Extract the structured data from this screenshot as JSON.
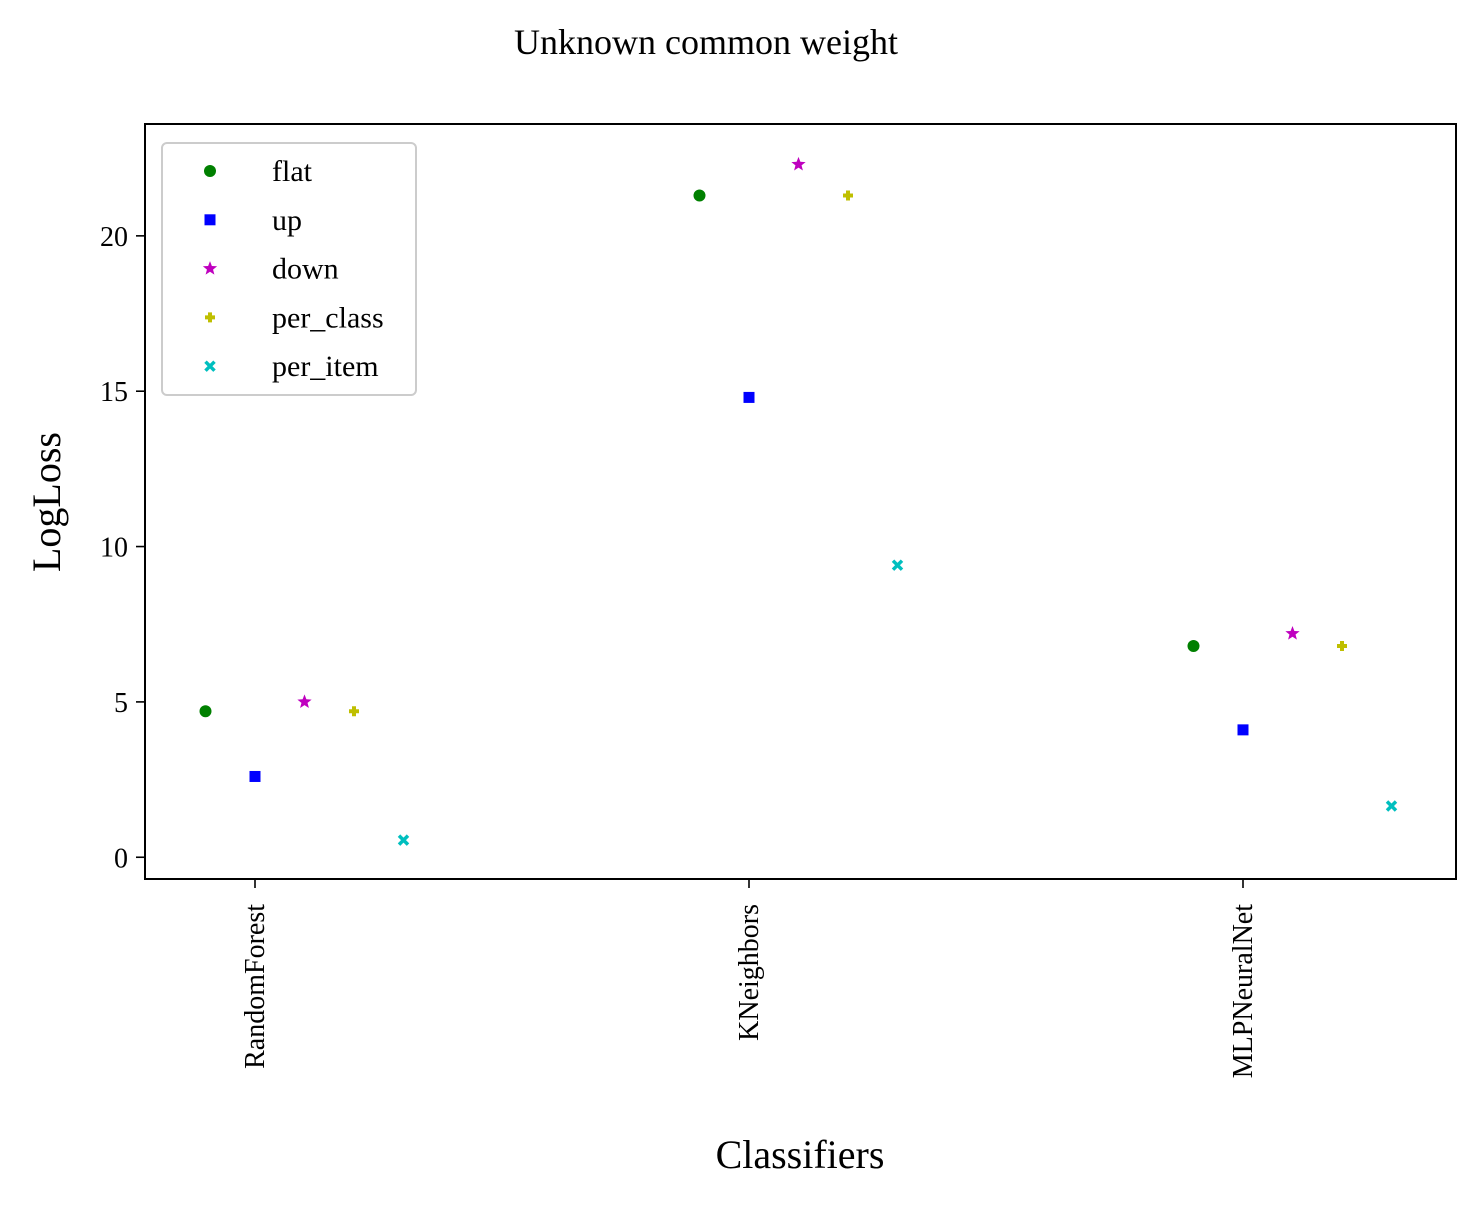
{
  "chart_data": {
    "type": "scatter",
    "title": "Unknown common weight",
    "xlabel": "Classifiers",
    "ylabel": "LogLoss",
    "categories": [
      "RandomForest",
      "KNeighbors",
      "MLPNeuralNet"
    ],
    "ylim": [
      -0.7,
      23.6
    ],
    "yticks": [
      0,
      5,
      10,
      15,
      20
    ],
    "grid": false,
    "legend_position": "top-left",
    "series": [
      {
        "name": "flat",
        "marker": "circle",
        "color": "#008000",
        "values": [
          4.7,
          21.3,
          6.8
        ]
      },
      {
        "name": "up",
        "marker": "square",
        "color": "#0000ff",
        "values": [
          2.6,
          14.8,
          4.1
        ]
      },
      {
        "name": "down",
        "marker": "star",
        "color": "#bf00bf",
        "values": [
          5.0,
          22.3,
          7.2
        ]
      },
      {
        "name": "per_class",
        "marker": "plus",
        "color": "#bfbf00",
        "values": [
          4.7,
          21.3,
          6.8
        ]
      },
      {
        "name": "per_item",
        "marker": "x",
        "color": "#00bfbf",
        "values": [
          0.55,
          9.4,
          1.65
        ]
      }
    ]
  }
}
